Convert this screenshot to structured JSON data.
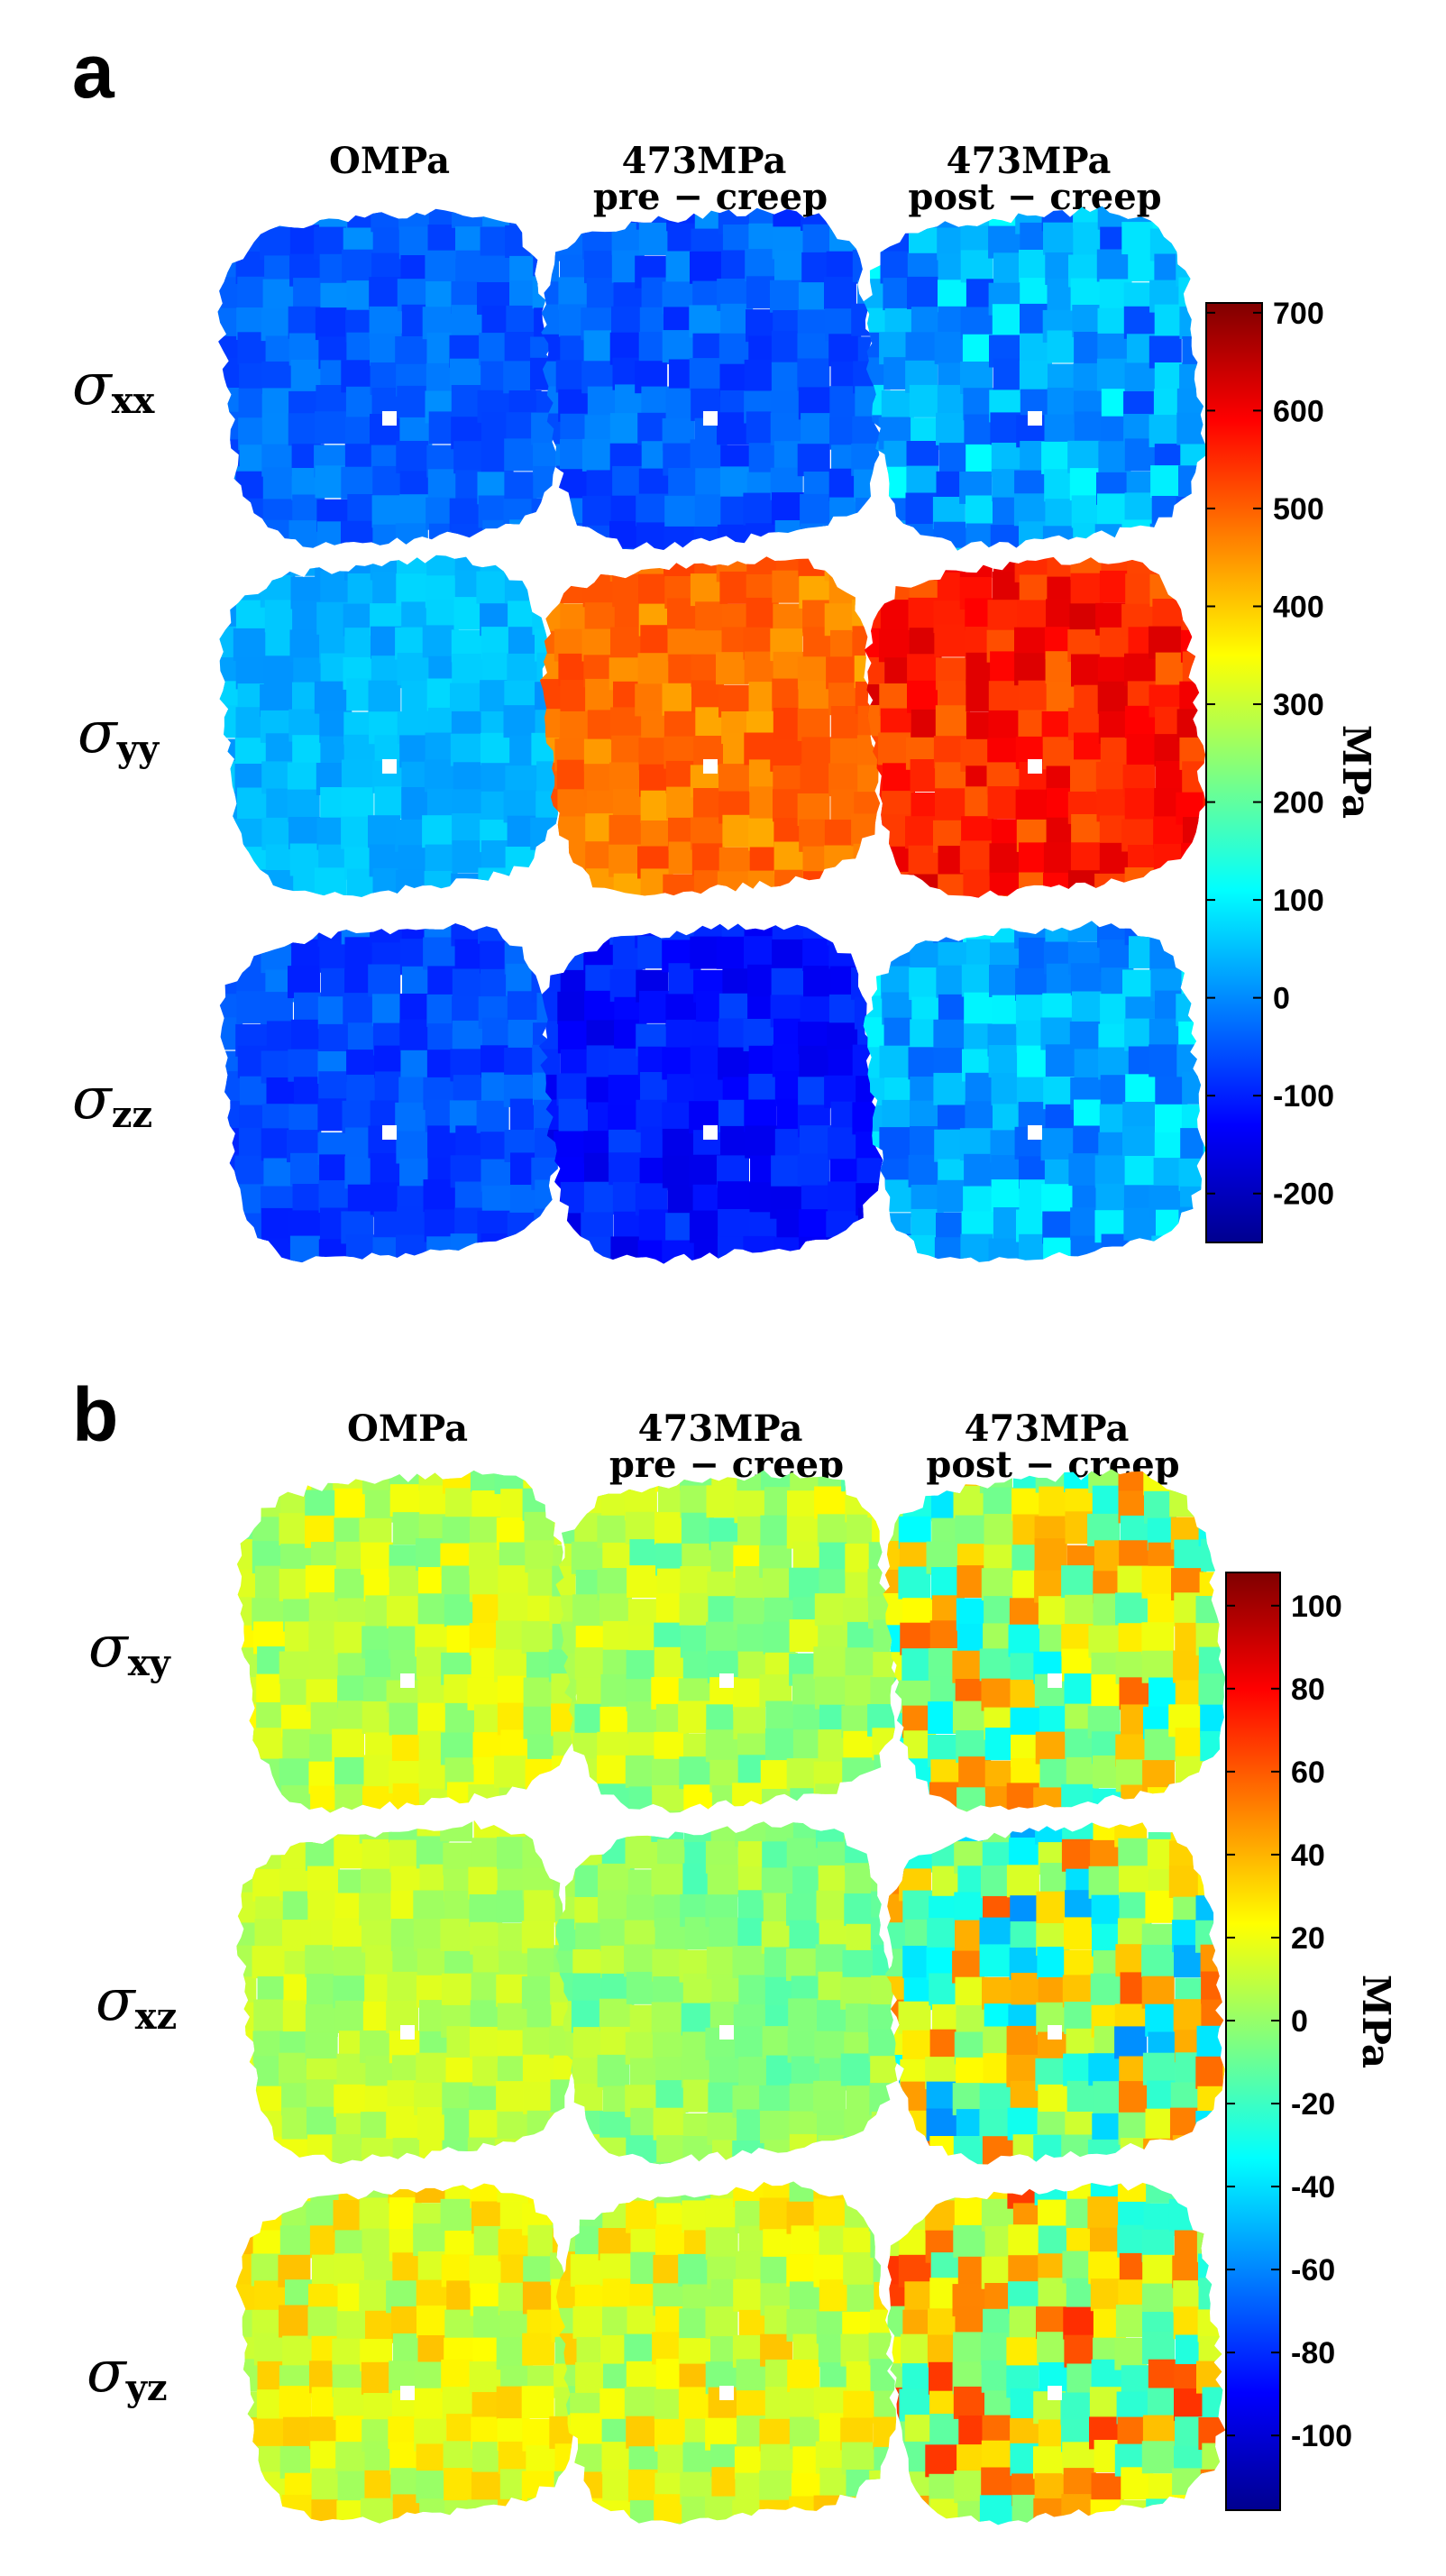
{
  "chart_data": [
    {
      "type": "heatmap",
      "panel": "a",
      "columns": [
        "OMPa",
        "473MPa\npre − creep",
        "473MPa\npost − creep"
      ],
      "rows": [
        {
          "sym": "σ",
          "sub": "xx"
        },
        {
          "sym": "σ",
          "sub": "yy"
        },
        {
          "sym": "σ",
          "sub": "zz"
        }
      ],
      "colorbar": {
        "label": "MPa",
        "range": [
          -250,
          710
        ],
        "ticks": [
          700,
          600,
          500,
          400,
          300,
          200,
          100,
          0,
          -100,
          -200
        ],
        "colormap": "jet"
      },
      "maps": [
        [
          {
            "mean": -40,
            "spread": 45
          },
          {
            "mean": -45,
            "spread": 50
          },
          {
            "mean": 20,
            "spread": 90
          }
        ],
        [
          {
            "mean": 40,
            "spread": 35
          },
          {
            "mean": 480,
            "spread": 50
          },
          {
            "mean": 560,
            "spread": 70
          }
        ],
        [
          {
            "mean": -60,
            "spread": 45
          },
          {
            "mean": -110,
            "spread": 45
          },
          {
            "mean": 30,
            "spread": 80
          }
        ]
      ]
    },
    {
      "type": "heatmap",
      "panel": "b",
      "columns": [
        "OMPa",
        "473MPa\npre − creep",
        "473MPa\npost − creep"
      ],
      "rows": [
        {
          "sym": "σ",
          "sub": "xy"
        },
        {
          "sym": "σ",
          "sub": "xz"
        },
        {
          "sym": "σ",
          "sub": "yz"
        }
      ],
      "colorbar": {
        "label": "MPa",
        "range": [
          -118,
          108
        ],
        "ticks": [
          100,
          80,
          60,
          40,
          20,
          0,
          -20,
          -40,
          -60,
          -80,
          -100
        ],
        "colormap": "jet"
      },
      "maps": [
        [
          {
            "mean": 10,
            "spread": 18
          },
          {
            "mean": 5,
            "spread": 20
          },
          {
            "mean": 10,
            "spread": 50
          }
        ],
        [
          {
            "mean": 8,
            "spread": 12
          },
          {
            "mean": -2,
            "spread": 15
          },
          {
            "mean": 0,
            "spread": 60
          }
        ],
        [
          {
            "mean": 18,
            "spread": 20
          },
          {
            "mean": 15,
            "spread": 22
          },
          {
            "mean": 20,
            "spread": 50
          }
        ]
      ]
    }
  ]
}
